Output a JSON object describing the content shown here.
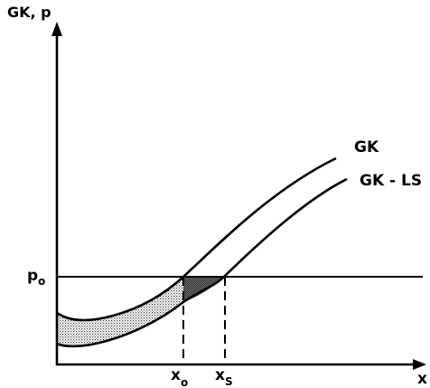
{
  "axes": {
    "y_label": "GK, p",
    "x_label": "x"
  },
  "curves": {
    "upper_label": "GK",
    "lower_label": "GK - LS"
  },
  "price_line": {
    "label_main": "p",
    "label_sub": "o"
  },
  "x_marks": {
    "xo_main": "x",
    "xo_sub": "o",
    "xs_main": "x",
    "xs_sub": "S"
  },
  "colors": {
    "ink": "#000000",
    "stipple_light": "#bdbdbd",
    "stipple_dark": "#5a5a5a"
  }
}
